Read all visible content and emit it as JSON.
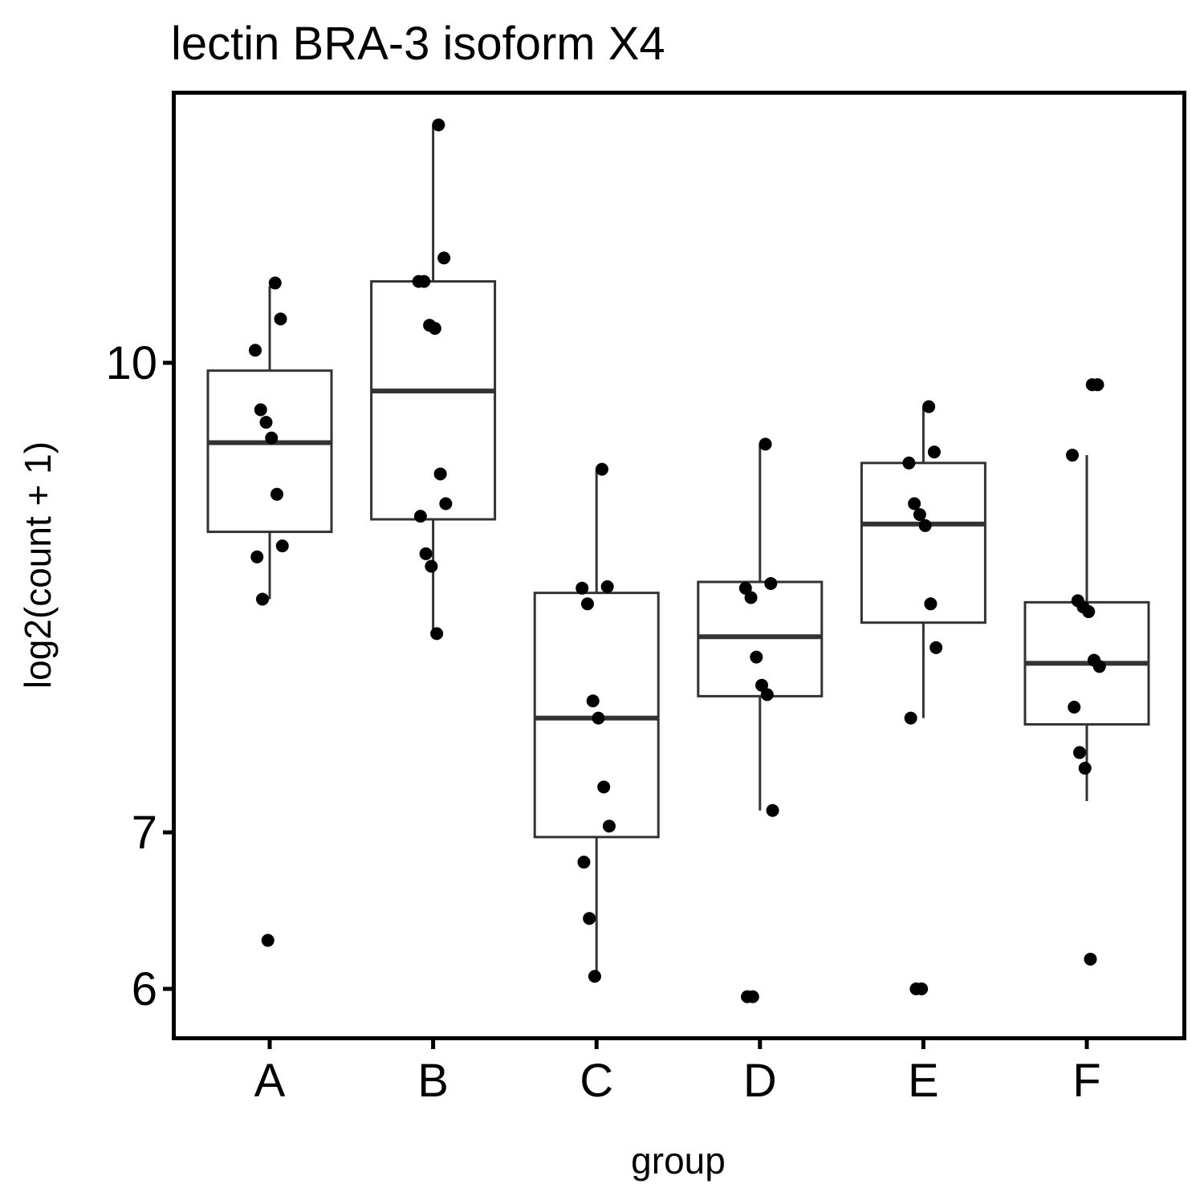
{
  "chart_data": {
    "type": "boxplot",
    "title": "lectin BRA-3 isoform X4",
    "xlabel": "group",
    "ylabel": "log2(count + 1)",
    "y_scale": "log2(count + 1)",
    "categories": [
      "A",
      "B",
      "C",
      "D",
      "E",
      "F"
    ],
    "y_ticks": [
      {
        "value": 6,
        "label": "6"
      },
      {
        "value": 7,
        "label": "7"
      },
      {
        "value": 10,
        "label": "10"
      }
    ],
    "grid": false,
    "legend": "none",
    "colors": {
      "points": "#000000",
      "box": "#333333",
      "axes": "#000000"
    },
    "boxes": [
      {
        "group": "A",
        "lower_whisker": 8.49,
        "q1": 8.92,
        "median": 9.49,
        "q3": 9.95,
        "upper_whisker": 10.49
      },
      {
        "group": "B",
        "lower_whisker": 8.27,
        "q1": 9.0,
        "median": 9.82,
        "q3": 10.52,
        "upper_whisker": 11.52
      },
      {
        "group": "C",
        "lower_whisker": 6.08,
        "q1": 6.97,
        "median": 7.73,
        "q3": 8.53,
        "upper_whisker": 9.32
      },
      {
        "group": "D",
        "lower_whisker": 7.14,
        "q1": 7.87,
        "median": 8.25,
        "q3": 8.6,
        "upper_whisker": 9.48
      },
      {
        "group": "E",
        "lower_whisker": 7.73,
        "q1": 8.34,
        "median": 8.97,
        "q3": 9.36,
        "upper_whisker": 9.72
      },
      {
        "group": "F",
        "lower_whisker": 7.2,
        "q1": 7.69,
        "median": 8.08,
        "q3": 8.47,
        "upper_whisker": 9.41
      }
    ],
    "points": [
      {
        "group": "A",
        "values": [
          10.51,
          10.28,
          10.08,
          9.7,
          9.62,
          9.52,
          9.16,
          8.83,
          8.76,
          8.49,
          6.31
        ]
      },
      {
        "group": "B",
        "values": [
          11.52,
          10.67,
          10.52,
          10.52,
          10.24,
          10.22,
          9.29,
          9.1,
          9.02,
          8.78,
          8.7,
          8.27
        ]
      },
      {
        "group": "C",
        "values": [
          9.32,
          8.57,
          8.56,
          8.46,
          7.84,
          7.73,
          7.29,
          7.04,
          6.81,
          6.45,
          6.08
        ]
      },
      {
        "group": "D",
        "values": [
          9.48,
          8.59,
          8.56,
          8.5,
          8.12,
          7.94,
          7.88,
          7.14,
          5.95,
          5.95
        ]
      },
      {
        "group": "E",
        "values": [
          9.72,
          9.43,
          9.36,
          9.1,
          9.03,
          8.96,
          8.46,
          8.18,
          7.73,
          6.0,
          6.0
        ]
      },
      {
        "group": "F",
        "values": [
          9.86,
          9.86,
          9.41,
          8.48,
          8.44,
          8.41,
          8.1,
          8.06,
          7.8,
          7.51,
          7.41,
          6.19
        ]
      }
    ]
  }
}
